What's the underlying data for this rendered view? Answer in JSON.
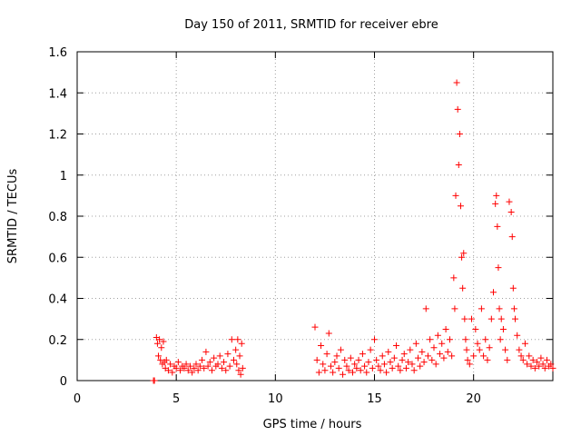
{
  "chart_data": {
    "type": "scatter",
    "title": "Day 150 of 2011, SRMTID for receiver ebre",
    "xlabel": "GPS time / hours",
    "ylabel": "SRMTID / TECUs",
    "xlim": [
      0,
      24
    ],
    "ylim": [
      0,
      1.6
    ],
    "x_ticks": [
      0,
      5,
      10,
      15,
      20
    ],
    "y_ticks": [
      0,
      0.2,
      0.4,
      0.6,
      0.8,
      1,
      1.2,
      1.4,
      1.6
    ],
    "x_tick_labels": [
      "0",
      "5",
      "10",
      "15",
      "20"
    ],
    "y_tick_labels": [
      "0",
      "0.2",
      "0.4",
      "0.6",
      "0.8",
      "1",
      "1.2",
      "1.4",
      "1.6"
    ],
    "grid": true,
    "marker": "+",
    "series": [
      {
        "name": "SRMTID",
        "color": "#ff0000",
        "x": [
          3.85,
          3.9,
          4.0,
          4.05,
          4.1,
          4.15,
          4.2,
          4.25,
          4.3,
          4.35,
          4.4,
          4.45,
          4.5,
          4.6,
          4.7,
          4.8,
          4.9,
          5.0,
          5.1,
          5.2,
          5.3,
          5.4,
          5.5,
          5.6,
          5.7,
          5.8,
          5.9,
          6.0,
          6.1,
          6.2,
          6.3,
          6.4,
          6.5,
          6.6,
          6.7,
          6.8,
          6.9,
          7.0,
          7.1,
          7.2,
          7.3,
          7.4,
          7.5,
          7.6,
          7.7,
          7.8,
          7.9,
          8.0,
          8.05,
          8.1,
          8.15,
          8.2,
          8.25,
          8.3,
          8.35,
          12.0,
          12.1,
          12.2,
          12.3,
          12.4,
          12.5,
          12.6,
          12.7,
          12.8,
          12.9,
          13.0,
          13.1,
          13.2,
          13.3,
          13.4,
          13.5,
          13.6,
          13.7,
          13.8,
          13.9,
          14.0,
          14.1,
          14.2,
          14.3,
          14.4,
          14.5,
          14.6,
          14.7,
          14.8,
          14.9,
          15.0,
          15.1,
          15.2,
          15.3,
          15.4,
          15.5,
          15.6,
          15.7,
          15.8,
          15.9,
          16.0,
          16.1,
          16.2,
          16.3,
          16.4,
          16.5,
          16.6,
          16.7,
          16.8,
          16.9,
          17.0,
          17.1,
          17.2,
          17.3,
          17.4,
          17.5,
          17.6,
          17.7,
          17.8,
          17.9,
          18.0,
          18.1,
          18.2,
          18.3,
          18.4,
          18.5,
          18.6,
          18.7,
          18.8,
          18.9,
          19.0,
          19.05,
          19.1,
          19.15,
          19.2,
          19.25,
          19.3,
          19.35,
          19.4,
          19.45,
          19.5,
          19.55,
          19.6,
          19.65,
          19.7,
          19.8,
          19.9,
          20.0,
          20.1,
          20.2,
          20.3,
          20.4,
          20.5,
          20.6,
          20.7,
          20.8,
          20.9,
          21.0,
          21.1,
          21.15,
          21.2,
          21.25,
          21.3,
          21.35,
          21.4,
          21.5,
          21.6,
          21.7,
          21.8,
          21.9,
          21.95,
          22.0,
          22.05,
          22.1,
          22.2,
          22.3,
          22.4,
          22.5,
          22.6,
          22.7,
          22.8,
          22.9,
          23.0,
          23.1,
          23.2,
          23.3,
          23.4,
          23.5,
          23.6,
          23.7,
          23.8,
          23.9,
          24.0
        ],
        "y": [
          0.0,
          0.0,
          0.21,
          0.18,
          0.12,
          0.2,
          0.1,
          0.16,
          0.08,
          0.19,
          0.09,
          0.06,
          0.1,
          0.05,
          0.08,
          0.04,
          0.07,
          0.06,
          0.09,
          0.05,
          0.07,
          0.06,
          0.08,
          0.05,
          0.07,
          0.04,
          0.06,
          0.08,
          0.05,
          0.07,
          0.1,
          0.06,
          0.14,
          0.07,
          0.09,
          0.05,
          0.11,
          0.07,
          0.08,
          0.12,
          0.06,
          0.09,
          0.05,
          0.13,
          0.07,
          0.2,
          0.1,
          0.15,
          0.08,
          0.2,
          0.05,
          0.12,
          0.03,
          0.18,
          0.06,
          0.26,
          0.1,
          0.04,
          0.17,
          0.08,
          0.05,
          0.13,
          0.23,
          0.07,
          0.04,
          0.09,
          0.12,
          0.06,
          0.15,
          0.03,
          0.1,
          0.07,
          0.05,
          0.11,
          0.04,
          0.08,
          0.06,
          0.1,
          0.05,
          0.13,
          0.07,
          0.04,
          0.09,
          0.15,
          0.06,
          0.2,
          0.1,
          0.07,
          0.05,
          0.12,
          0.08,
          0.04,
          0.14,
          0.09,
          0.06,
          0.11,
          0.17,
          0.07,
          0.05,
          0.1,
          0.13,
          0.06,
          0.09,
          0.15,
          0.08,
          0.05,
          0.18,
          0.11,
          0.07,
          0.14,
          0.09,
          0.35,
          0.12,
          0.2,
          0.1,
          0.16,
          0.08,
          0.22,
          0.13,
          0.18,
          0.11,
          0.25,
          0.14,
          0.2,
          0.12,
          0.5,
          0.35,
          0.9,
          1.45,
          1.32,
          1.05,
          1.2,
          0.85,
          0.6,
          0.45,
          0.62,
          0.3,
          0.2,
          0.15,
          0.1,
          0.08,
          0.3,
          0.12,
          0.25,
          0.18,
          0.15,
          0.35,
          0.12,
          0.2,
          0.1,
          0.16,
          0.3,
          0.43,
          0.86,
          0.9,
          0.75,
          0.55,
          0.35,
          0.2,
          0.3,
          0.25,
          0.15,
          0.1,
          0.87,
          0.82,
          0.7,
          0.45,
          0.35,
          0.3,
          0.22,
          0.15,
          0.12,
          0.1,
          0.18,
          0.08,
          0.12,
          0.07,
          0.1,
          0.06,
          0.09,
          0.07,
          0.11,
          0.08,
          0.06,
          0.1,
          0.07,
          0.08,
          0.06
        ]
      }
    ]
  }
}
